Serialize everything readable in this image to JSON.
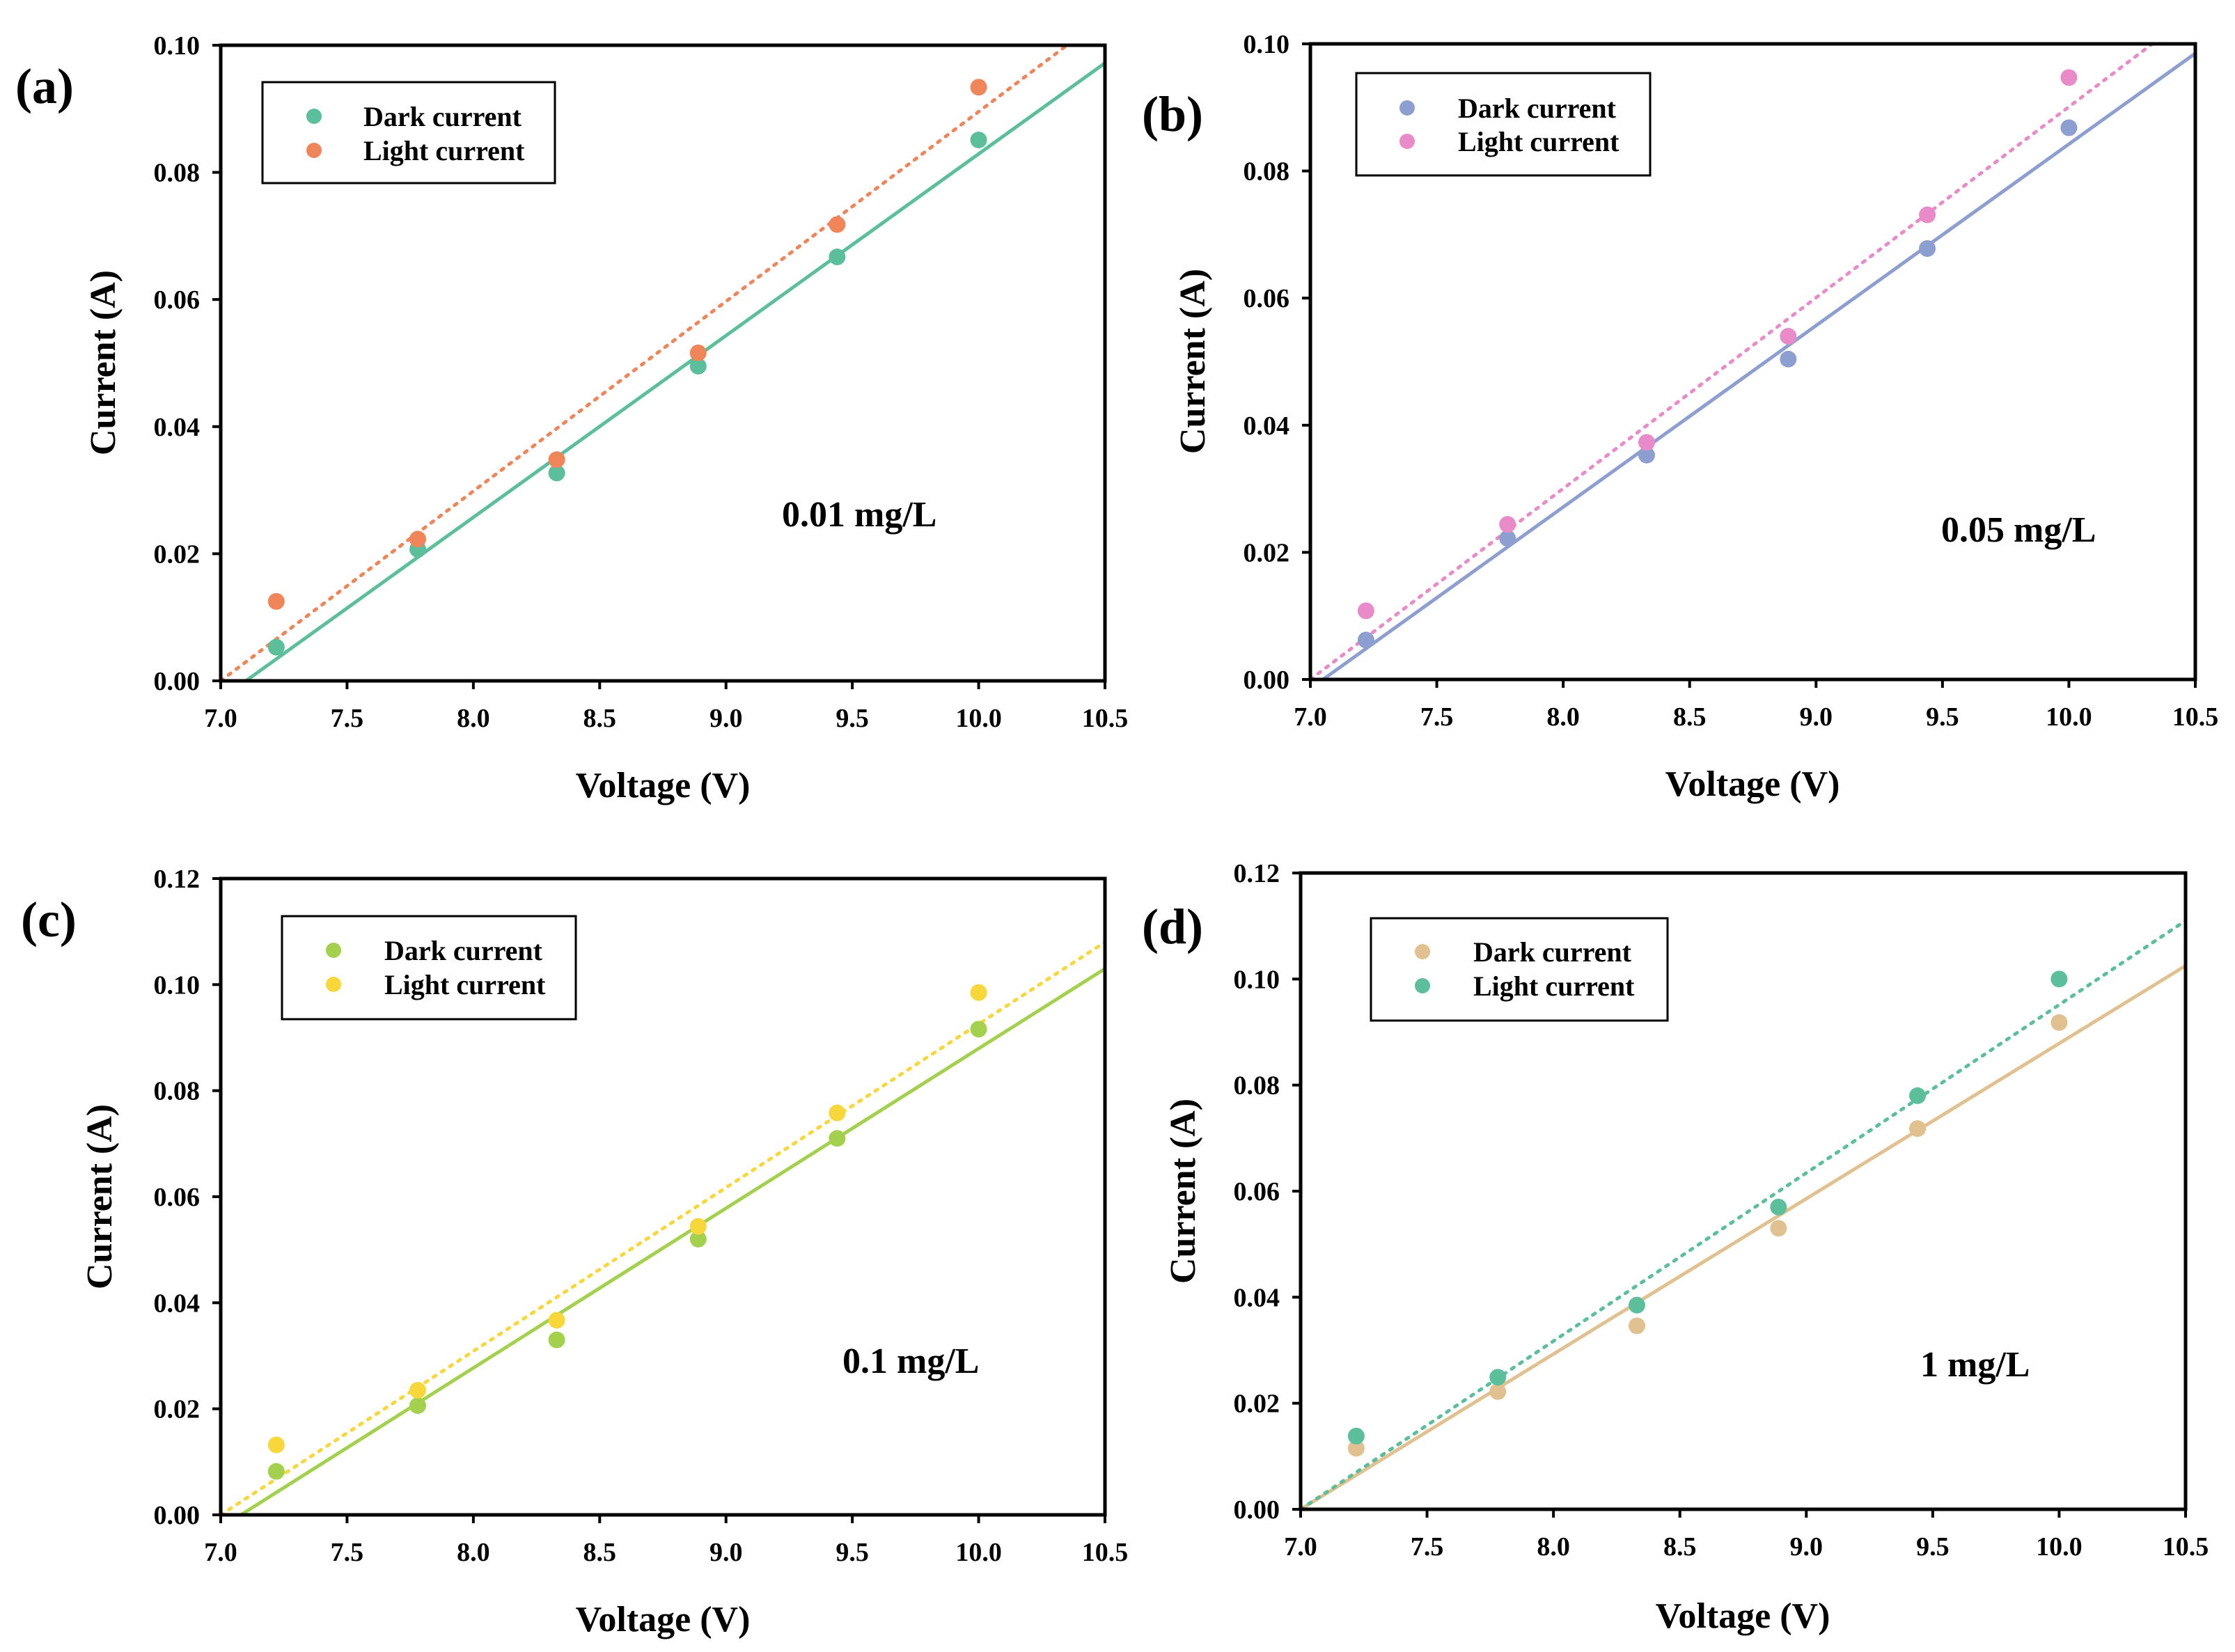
{
  "chart_data": [
    {
      "type": "scatter",
      "panel_label": "(a)",
      "xlabel": "Voltage (V)",
      "ylabel": "Current (A)",
      "xlim": [
        7.0,
        10.5
      ],
      "ylim": [
        0.0,
        0.1
      ],
      "xticks": [
        "7.0",
        "7.5",
        "8.0",
        "8.5",
        "9.0",
        "9.5",
        "10.0",
        "10.5"
      ],
      "yticks": [
        "0.00",
        "0.02",
        "0.04",
        "0.06",
        "0.08",
        "0.10"
      ],
      "annotation": "0.01 mg/L",
      "legend_placement": "top-left",
      "grid": false,
      "series": [
        {
          "name": "Dark current",
          "color": "#5cbf9b",
          "fit_line": "solid",
          "x": [
            7.22,
            7.78,
            8.33,
            8.89,
            9.44,
            10.0
          ],
          "y": [
            0.0053,
            0.0207,
            0.0327,
            0.0495,
            0.0667,
            0.0851
          ],
          "fit": {
            "x": [
              7.1,
              10.5
            ],
            "y": [
              0.0,
              0.0972
            ]
          }
        },
        {
          "name": "Light current",
          "color": "#f0855a",
          "fit_line": "dotted",
          "x": [
            7.22,
            7.78,
            8.33,
            8.89,
            9.44,
            10.0
          ],
          "y": [
            0.0125,
            0.0223,
            0.0348,
            0.0516,
            0.0718,
            0.0934
          ],
          "fit": {
            "x": [
              7.0,
              10.35
            ],
            "y": [
              0.0,
              0.1
            ]
          }
        }
      ]
    },
    {
      "type": "scatter",
      "panel_label": "(b)",
      "xlabel": "Voltage (V)",
      "ylabel": "Current (A)",
      "xlim": [
        7.0,
        10.5
      ],
      "ylim": [
        0.0,
        0.1
      ],
      "xticks": [
        "7.0",
        "7.5",
        "8.0",
        "8.5",
        "9.0",
        "9.5",
        "10.0",
        "10.5"
      ],
      "yticks": [
        "0.00",
        "0.02",
        "0.04",
        "0.06",
        "0.08",
        "0.10"
      ],
      "annotation": "0.05 mg/L",
      "legend_placement": "top-left",
      "grid": false,
      "series": [
        {
          "name": "Dark current",
          "color": "#8c9fd0",
          "fit_line": "solid",
          "x": [
            7.22,
            7.78,
            8.33,
            8.89,
            9.44,
            10.0
          ],
          "y": [
            0.0062,
            0.0222,
            0.0353,
            0.0504,
            0.0678,
            0.0868
          ],
          "fit": {
            "x": [
              7.05,
              10.5
            ],
            "y": [
              0.0,
              0.0985
            ]
          }
        },
        {
          "name": "Light current",
          "color": "#e88bc8",
          "fit_line": "dotted",
          "x": [
            7.22,
            7.78,
            8.33,
            8.89,
            9.44,
            10.0
          ],
          "y": [
            0.0108,
            0.0244,
            0.0373,
            0.054,
            0.0731,
            0.0947
          ],
          "fit": {
            "x": [
              7.0,
              10.33
            ],
            "y": [
              0.0,
              0.1
            ]
          }
        }
      ]
    },
    {
      "type": "scatter",
      "panel_label": "(c)",
      "xlabel": "Voltage (V)",
      "ylabel": "Current (A)",
      "xlim": [
        7.0,
        10.5
      ],
      "ylim": [
        0.0,
        0.12
      ],
      "xticks": [
        "7.0",
        "7.5",
        "8.0",
        "8.5",
        "9.0",
        "9.5",
        "10.0",
        "10.5"
      ],
      "yticks": [
        "0.00",
        "0.02",
        "0.04",
        "0.06",
        "0.08",
        "0.10",
        "0.12"
      ],
      "annotation": "0.1 mg/L",
      "legend_placement": "top-left",
      "grid": false,
      "series": [
        {
          "name": "Dark current",
          "color": "#a3d14e",
          "fit_line": "solid",
          "x": [
            7.22,
            7.78,
            8.33,
            8.89,
            9.44,
            10.0
          ],
          "y": [
            0.0082,
            0.0206,
            0.033,
            0.052,
            0.071,
            0.0916
          ],
          "fit": {
            "x": [
              7.08,
              10.5
            ],
            "y": [
              0.0,
              0.103
            ]
          }
        },
        {
          "name": "Light current",
          "color": "#f7d73a",
          "fit_line": "dotted",
          "x": [
            7.22,
            7.78,
            8.33,
            8.89,
            9.44,
            10.0
          ],
          "y": [
            0.0132,
            0.0235,
            0.0367,
            0.0544,
            0.0758,
            0.0985
          ],
          "fit": {
            "x": [
              7.0,
              10.5
            ],
            "y": [
              0.0,
              0.108
            ]
          }
        }
      ]
    },
    {
      "type": "scatter",
      "panel_label": "(d)",
      "xlabel": "Voltage (V)",
      "ylabel": "Current (A)",
      "xlim": [
        7.0,
        10.5
      ],
      "ylim": [
        0.0,
        0.12
      ],
      "xticks": [
        "7.0",
        "7.5",
        "8.0",
        "8.5",
        "9.0",
        "9.5",
        "10.0",
        "10.5"
      ],
      "yticks": [
        "0.00",
        "0.02",
        "0.04",
        "0.06",
        "0.08",
        "0.10",
        "0.12"
      ],
      "annotation": "1 mg/L",
      "legend_placement": "top-left",
      "grid": false,
      "series": [
        {
          "name": "Dark current",
          "color": "#e0c18f",
          "fit_line": "solid",
          "x": [
            7.22,
            7.78,
            8.33,
            8.89,
            9.44,
            10.0
          ],
          "y": [
            0.0115,
            0.0222,
            0.0346,
            0.053,
            0.0718,
            0.0918
          ],
          "fit": {
            "x": [
              7.0,
              10.5
            ],
            "y": [
              0.0,
              0.1025
            ]
          }
        },
        {
          "name": "Light current",
          "color": "#5cbf9b",
          "fit_line": "dotted",
          "x": [
            7.22,
            7.78,
            8.33,
            8.89,
            9.44,
            10.0
          ],
          "y": [
            0.0138,
            0.0249,
            0.0385,
            0.057,
            0.078,
            0.1
          ],
          "fit": {
            "x": [
              7.0,
              10.5
            ],
            "y": [
              0.0,
              0.111
            ]
          }
        }
      ]
    }
  ]
}
